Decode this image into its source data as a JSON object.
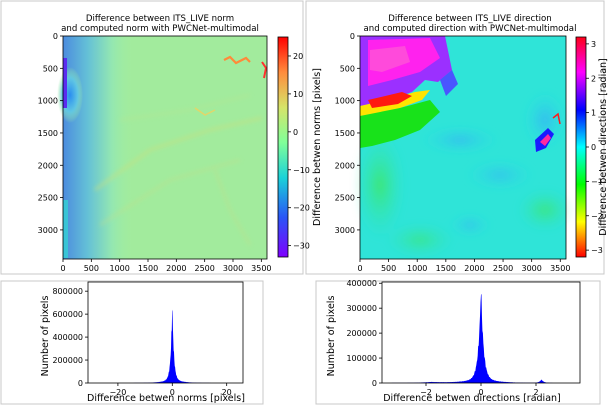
{
  "colors": {
    "histogram_fill": "#0000ff",
    "spine": "#000000",
    "frame": "#c8c8c8"
  },
  "chart_data": [
    {
      "type": "heatmap",
      "title_lines": [
        "Difference between ITS_LIVE norm",
        "and computed norm with PWCNet-multimodal"
      ],
      "x_ticks": [
        "0",
        "500",
        "1000",
        "1500",
        "2000",
        "2500",
        "3000",
        "3500"
      ],
      "y_ticks": [
        "0",
        "500",
        "1000",
        "1500",
        "2000",
        "2500",
        "3000"
      ],
      "xlim": [
        0,
        3600
      ],
      "ylim": [
        0,
        3450
      ],
      "colormap": "rainbow",
      "colorbar": {
        "label": "Difference betwen norms [pixels]",
        "range": [
          -33,
          25
        ],
        "ticks": [
          "20",
          "10",
          "0",
          "−10",
          "−20",
          "−30"
        ],
        "tick_values": [
          20,
          10,
          0,
          -10,
          -20,
          -30
        ]
      },
      "dominant_value": 0
    },
    {
      "type": "heatmap",
      "title_lines": [
        "Difference between ITS_LIVE direction",
        "and computed direction with PWCNet-multimodal"
      ],
      "x_ticks": [
        "0",
        "500",
        "1000",
        "1500",
        "2000",
        "2500",
        "3000",
        "3500"
      ],
      "y_ticks": [
        "0",
        "500",
        "1000",
        "1500",
        "2000",
        "2500",
        "3000"
      ],
      "xlim": [
        0,
        3600
      ],
      "ylim": [
        0,
        3450
      ],
      "colormap": "hsv",
      "colorbar": {
        "label": "Difference betwen directions [radian]",
        "range": [
          -3.2,
          3.2
        ],
        "ticks": [
          "3",
          "2",
          "1",
          "0",
          "−1",
          "−2",
          "−3"
        ],
        "tick_values": [
          3,
          2,
          1,
          0,
          -1,
          -2,
          -3
        ]
      },
      "dominant_value": 0
    },
    {
      "type": "bar",
      "xlabel": "Difference betwen norms [pixels]",
      "ylabel": "Number of pixels",
      "x_ticks": [
        "−20",
        "0",
        "20"
      ],
      "x_tick_values": [
        -20,
        0,
        20
      ],
      "y_ticks": [
        "0",
        "200000",
        "400000",
        "600000",
        "800000"
      ],
      "y_tick_values": [
        0,
        200000,
        400000,
        600000,
        800000
      ],
      "xlim": [
        -31,
        26
      ],
      "ylim": [
        0,
        880000
      ],
      "peak_value": 660000,
      "peak_x": 0
    },
    {
      "type": "bar",
      "xlabel": "Difference betwen directions [radian]",
      "ylabel": "Number of pixels",
      "x_ticks": [
        "−2",
        "0",
        "2"
      ],
      "x_tick_values": [
        -2,
        0,
        2
      ],
      "y_ticks": [
        "0",
        "100000",
        "200000",
        "300000",
        "400000"
      ],
      "y_tick_values": [
        0,
        100000,
        200000,
        300000,
        400000
      ],
      "xlim": [
        -3.6,
        3.6
      ],
      "ylim": [
        0,
        405000
      ],
      "peak_value": 365000,
      "peak_x": 0
    }
  ]
}
